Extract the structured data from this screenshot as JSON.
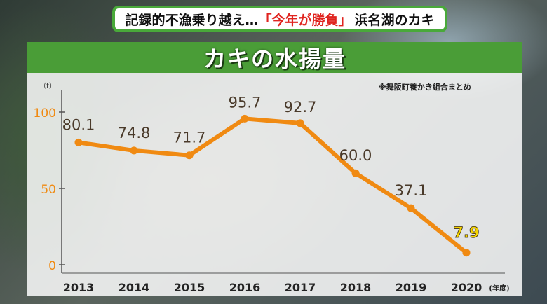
{
  "headline": {
    "prefix": "記録的不漁乗り越え…",
    "highlight": "「今年が勝負」",
    "suffix": "浜名湖のカキ"
  },
  "chart_data": {
    "type": "line",
    "title": "カキの水揚量",
    "note": "※舞阪町養かき組合まとめ",
    "ylabel": "（t）",
    "xlabel": "(年度)",
    "categories": [
      "2013",
      "2014",
      "2015",
      "2016",
      "2017",
      "2018",
      "2019",
      "2020"
    ],
    "values": [
      80.1,
      74.8,
      71.7,
      95.7,
      92.7,
      60.0,
      37.1,
      7.9
    ],
    "value_labels": [
      "80.1",
      "74.8",
      "71.7",
      "95.7",
      "92.7",
      "60.0",
      "37.1",
      "7.9"
    ],
    "ylim": [
      0,
      100
    ],
    "yticks": [
      0,
      50,
      100
    ],
    "grid": false,
    "colors": {
      "line": "#f08a12",
      "label": "#4a3a2a",
      "highlight_label": "#f5d400",
      "axis_tick": "#f08a12"
    }
  }
}
